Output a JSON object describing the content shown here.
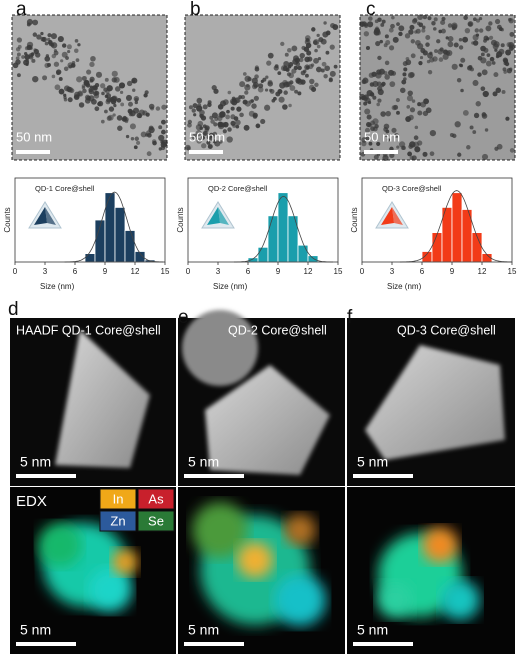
{
  "panel_letters": [
    "a",
    "b",
    "c",
    "d",
    "e",
    "f"
  ],
  "tem_scale_labels": [
    "50 nm",
    "50 nm",
    "50 nm"
  ],
  "haadf_labels": [
    "HAADF QD-1 Core@shell",
    "QD-2 Core@shell",
    "QD-3 Core@shell"
  ],
  "haadf_scale_labels": [
    "5 nm",
    "5 nm",
    "5 nm"
  ],
  "edx_label": "EDX",
  "edx_legend": [
    "In",
    "As",
    "Zn",
    "Se"
  ],
  "edx_scale_labels": [
    "5 nm",
    "5 nm",
    "5 nm"
  ],
  "chart_data": [
    {
      "type": "histogram",
      "annotation": "QD-1 Core@shell",
      "x_label": "Size (nm)",
      "y_label": "Counts",
      "bins": [
        7,
        8,
        9,
        10,
        11,
        12,
        13,
        14
      ],
      "values": [
        4,
        20,
        33,
        26,
        15,
        5,
        1
      ],
      "color": "#1c3f5f",
      "xlim": [
        0,
        15
      ],
      "xticks": [
        0,
        3,
        6,
        9,
        12,
        15
      ],
      "ylim": [
        0,
        40
      ]
    },
    {
      "type": "histogram",
      "annotation": "QD-2 Core@shell",
      "x_label": "Size (nm)",
      "y_label": "Counts",
      "bins": [
        6,
        7,
        8,
        9,
        10,
        11,
        12,
        13
      ],
      "values": [
        2,
        7,
        22,
        33,
        22,
        8,
        3
      ],
      "color": "#1a9eac",
      "xlim": [
        0,
        15
      ],
      "xticks": [
        0,
        3,
        6,
        9,
        12,
        15
      ],
      "ylim": [
        0,
        40
      ]
    },
    {
      "type": "histogram",
      "annotation": "QD-3 Core@shell",
      "x_label": "Size (nm)",
      "y_label": "Counts",
      "bins": [
        6,
        7,
        8,
        9,
        10,
        11,
        12,
        13
      ],
      "values": [
        5,
        14,
        26,
        33,
        25,
        14,
        4
      ],
      "color": "#f23b18",
      "xlim": [
        0,
        15
      ],
      "xticks": [
        0,
        3,
        6,
        9,
        12,
        15
      ],
      "ylim": [
        0,
        40
      ]
    }
  ]
}
